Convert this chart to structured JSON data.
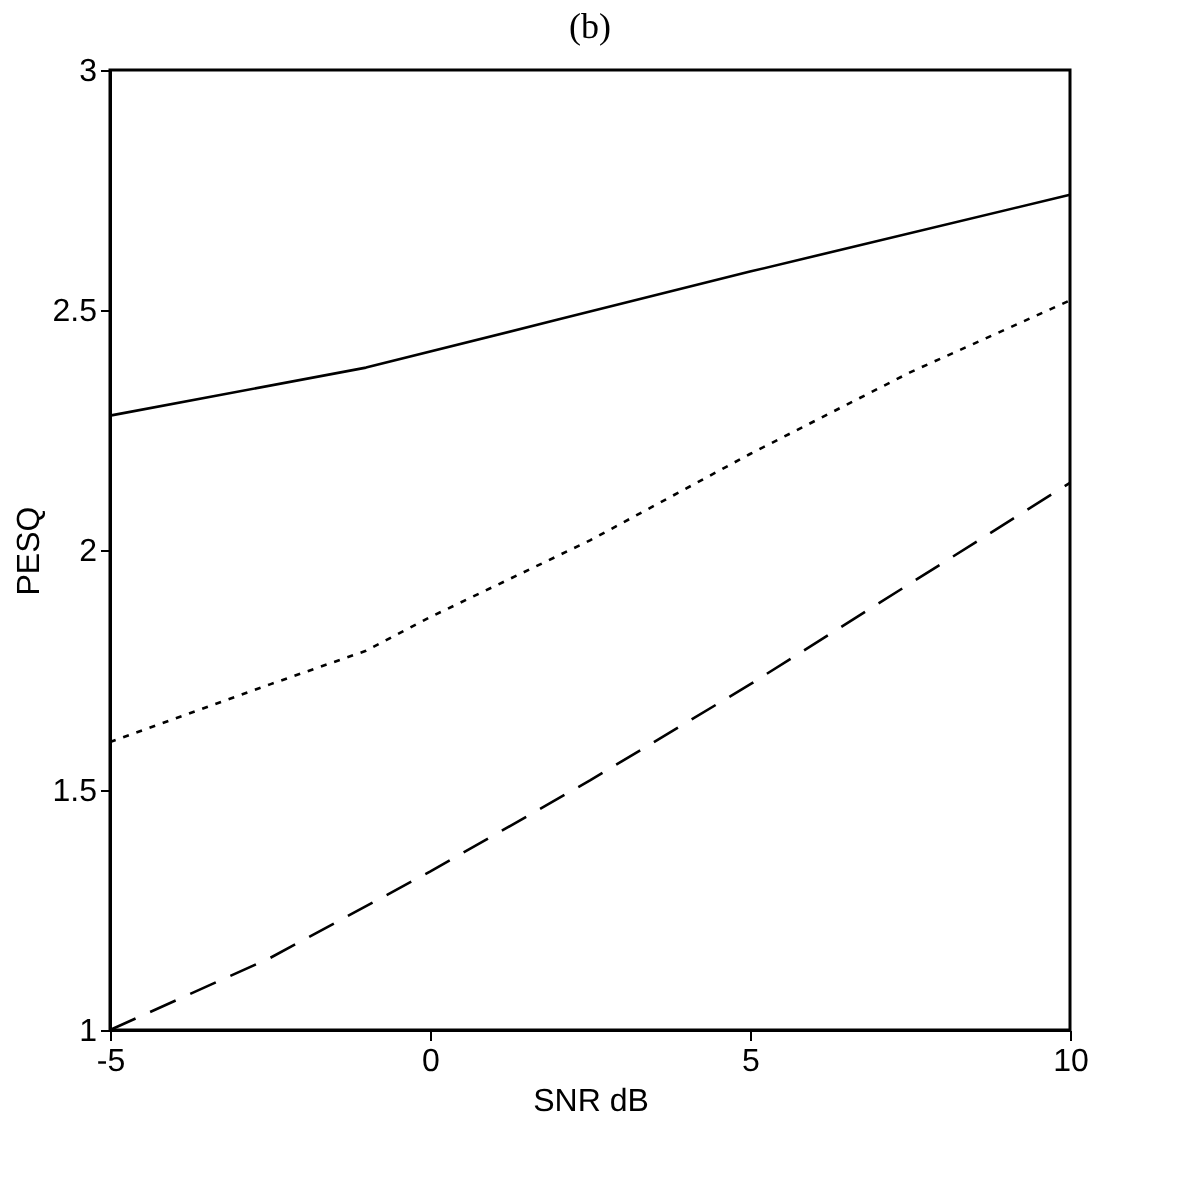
{
  "chart_data": {
    "type": "line",
    "title": "(b)",
    "xlabel": "SNR dB",
    "ylabel": "PESQ",
    "xlim": [
      -5,
      10
    ],
    "xticks": [
      -5,
      0,
      5,
      10
    ],
    "ylim": [
      1,
      3
    ],
    "yticks": [
      1,
      1.5,
      2,
      2.5,
      3
    ],
    "grid": false,
    "marker": "none",
    "series": [
      {
        "color": "#000000",
        "line_style": "solid",
        "x": [
          -5,
          -1,
          2,
          5,
          10
        ],
        "values": [
          2.28,
          2.38,
          2.48,
          2.58,
          2.74
        ]
      },
      {
        "color": "#000000",
        "line_style": "dotted",
        "x": [
          -5,
          -2.5,
          -1,
          0,
          2.5,
          5,
          7.5,
          10
        ],
        "values": [
          1.6,
          1.72,
          1.79,
          1.86,
          2.02,
          2.2,
          2.37,
          2.52
        ]
      },
      {
        "color": "#000000",
        "line_style": "dashed",
        "x": [
          -5,
          -2.5,
          0,
          2.5,
          5,
          7.5,
          10
        ],
        "values": [
          1.0,
          1.15,
          1.33,
          1.52,
          1.72,
          1.93,
          2.14
        ]
      }
    ]
  }
}
